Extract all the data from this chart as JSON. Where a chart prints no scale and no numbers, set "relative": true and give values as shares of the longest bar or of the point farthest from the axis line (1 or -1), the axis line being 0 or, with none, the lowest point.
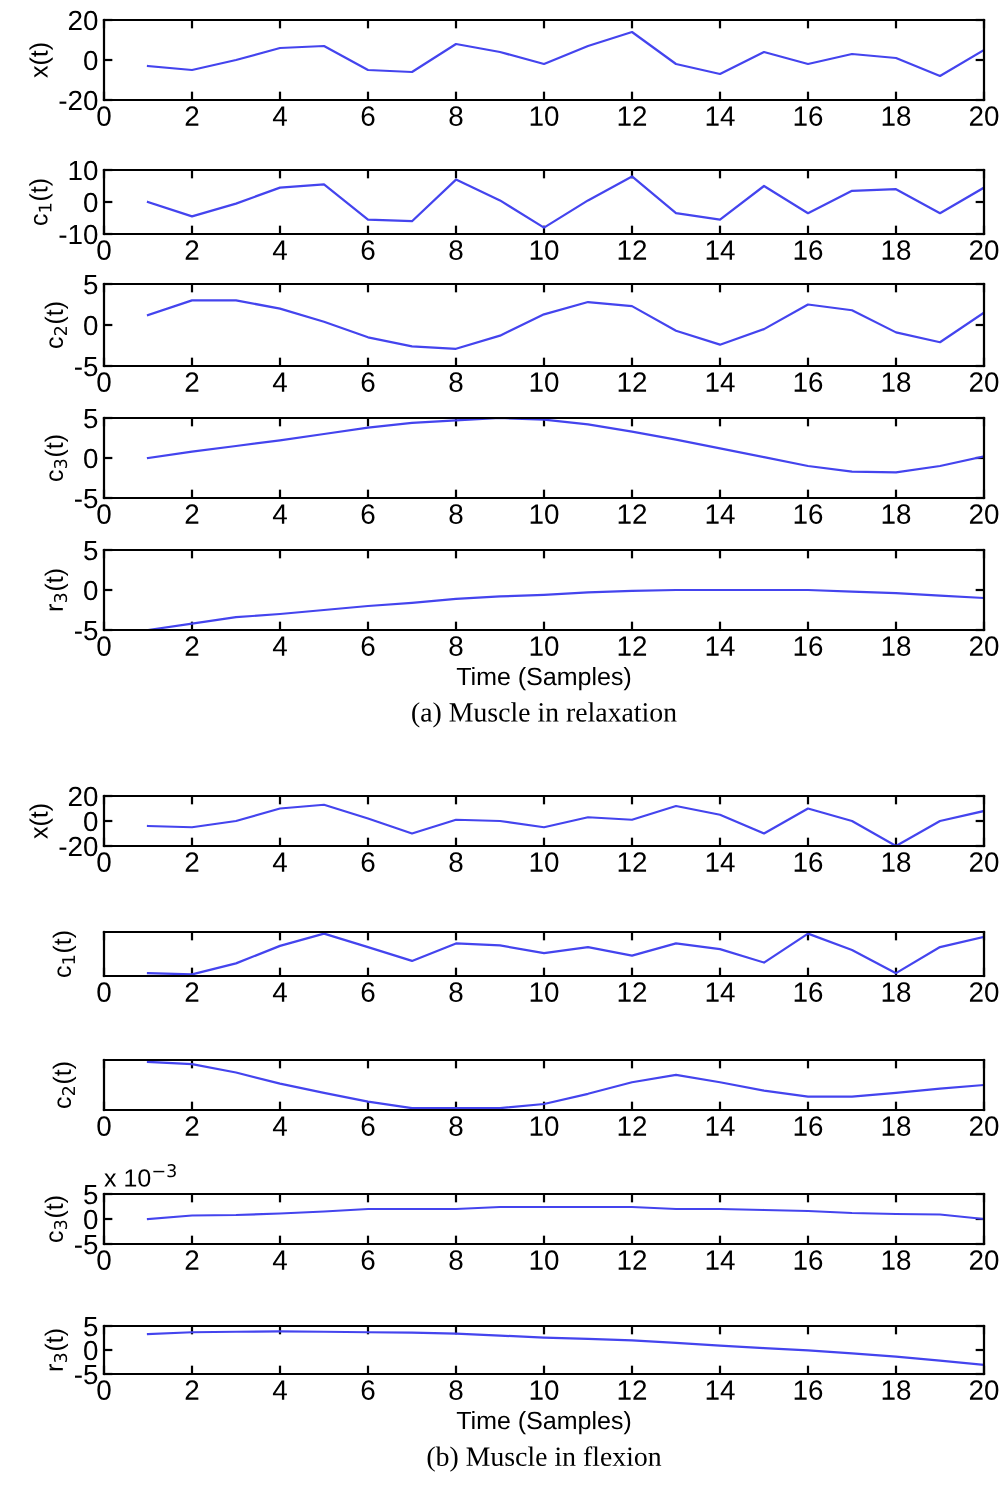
{
  "chart_data": [
    {
      "type": "line",
      "ylabel": "x(t)",
      "x": [
        1,
        2,
        3,
        4,
        5,
        6,
        7,
        8,
        9,
        10,
        11,
        12,
        13,
        14,
        15,
        16,
        17,
        18,
        19,
        20
      ],
      "series": [
        {
          "color": "#4444ee",
          "values": [
            -3,
            -5,
            0,
            6,
            7,
            -5,
            -6,
            8,
            4,
            -2,
            7,
            14,
            -2,
            -7,
            4,
            -2,
            3,
            1,
            -8,
            5
          ]
        }
      ],
      "xlim": [
        0,
        20
      ],
      "xticks": [
        0,
        2,
        4,
        6,
        8,
        10,
        12,
        14,
        16,
        18,
        20
      ],
      "ylim": [
        -20,
        20
      ],
      "yticks": [
        -20,
        0,
        20
      ]
    },
    {
      "type": "line",
      "ylabel": "c$_{1}$(t)",
      "x": [
        1,
        2,
        3,
        4,
        5,
        6,
        7,
        8,
        9,
        10,
        11,
        12,
        13,
        14,
        15,
        16,
        17,
        18,
        19,
        20
      ],
      "series": [
        {
          "color": "#4444ee",
          "values": [
            0,
            -4.5,
            -0.5,
            4.5,
            5.5,
            -5.5,
            -6,
            7,
            0.5,
            -8,
            0.5,
            8,
            -3.5,
            -5.5,
            5,
            -3.5,
            3.5,
            4,
            -3.5,
            4.5
          ]
        }
      ],
      "xlim": [
        0,
        20
      ],
      "xticks": [
        0,
        2,
        4,
        6,
        8,
        10,
        12,
        14,
        16,
        18,
        20
      ],
      "ylim": [
        -10,
        10
      ],
      "yticks": [
        -10,
        0,
        10
      ]
    },
    {
      "type": "line",
      "ylabel": "c$_{2}$(t)",
      "x": [
        1,
        2,
        3,
        4,
        5,
        6,
        7,
        8,
        9,
        10,
        11,
        12,
        13,
        14,
        15,
        16,
        17,
        18,
        19,
        20
      ],
      "series": [
        {
          "color": "#4444ee",
          "values": [
            1.2,
            3,
            3,
            2,
            0.4,
            -1.5,
            -2.6,
            -2.9,
            -1.3,
            1.3,
            2.8,
            2.3,
            -0.7,
            -2.4,
            -0.5,
            2.5,
            1.8,
            -0.9,
            -2.1,
            1.5
          ]
        }
      ],
      "xlim": [
        0,
        20
      ],
      "xticks": [
        0,
        2,
        4,
        6,
        8,
        10,
        12,
        14,
        16,
        18,
        20
      ],
      "ylim": [
        -5,
        5
      ],
      "yticks": [
        -5,
        0,
        5
      ]
    },
    {
      "type": "line",
      "ylabel": "c$_{3}$(t)",
      "x": [
        1,
        2,
        3,
        4,
        5,
        6,
        7,
        8,
        9,
        10,
        11,
        12,
        13,
        14,
        15,
        16,
        17,
        18,
        19,
        20
      ],
      "series": [
        {
          "color": "#4444ee",
          "values": [
            0,
            0.8,
            1.5,
            2.2,
            3,
            3.8,
            4.4,
            4.7,
            5,
            4.8,
            4.2,
            3.3,
            2.3,
            1.2,
            0.1,
            -1,
            -1.7,
            -1.8,
            -1,
            0.2
          ]
        }
      ],
      "xlim": [
        0,
        20
      ],
      "xticks": [
        0,
        2,
        4,
        6,
        8,
        10,
        12,
        14,
        16,
        18,
        20
      ],
      "ylim": [
        -5,
        5
      ],
      "yticks": [
        -5,
        0,
        5
      ]
    },
    {
      "type": "line",
      "ylabel": "r$_{3}$(t)",
      "xlabel": "Time (Samples)",
      "annotations": [
        "(a) Muscle in relaxation"
      ],
      "x": [
        1,
        2,
        3,
        4,
        5,
        6,
        7,
        8,
        9,
        10,
        11,
        12,
        13,
        14,
        15,
        16,
        17,
        18,
        19,
        20
      ],
      "series": [
        {
          "color": "#4444ee",
          "values": [
            -5,
            -4.2,
            -3.4,
            -3,
            -2.5,
            -2,
            -1.6,
            -1.1,
            -0.8,
            -0.6,
            -0.3,
            -0.1,
            0,
            0,
            0,
            0,
            -0.2,
            -0.4,
            -0.7,
            -1
          ]
        }
      ],
      "xlim": [
        0,
        20
      ],
      "xticks": [
        0,
        2,
        4,
        6,
        8,
        10,
        12,
        14,
        16,
        18,
        20
      ],
      "ylim": [
        -5,
        5
      ],
      "yticks": [
        -5,
        0,
        5
      ]
    },
    {
      "type": "line",
      "ylabel": "x(t)",
      "x": [
        1,
        2,
        3,
        4,
        5,
        6,
        7,
        8,
        9,
        10,
        11,
        12,
        13,
        14,
        15,
        16,
        17,
        18,
        19,
        20
      ],
      "series": [
        {
          "color": "#4444ee",
          "values": [
            -4,
            -5,
            0,
            10,
            13,
            2,
            -10,
            1,
            0,
            -5,
            3,
            1,
            12,
            5,
            -10,
            10,
            0,
            -20,
            0,
            8
          ]
        }
      ],
      "xlim": [
        0,
        20
      ],
      "xticks": [
        0,
        2,
        4,
        6,
        8,
        10,
        12,
        14,
        16,
        18,
        20
      ],
      "ylim": [
        -20,
        20
      ],
      "yticks": [
        -20,
        0,
        20
      ]
    },
    {
      "type": "line",
      "relative": true,
      "ylabel": "c$_{1}$(t)",
      "x": [
        1,
        2,
        3,
        4,
        5,
        6,
        7,
        8,
        9,
        10,
        11,
        12,
        13,
        14,
        15,
        16,
        17,
        18,
        19,
        20
      ],
      "series": [
        {
          "color": "#4444ee",
          "values": [
            0.03,
            0,
            0.27,
            0.7,
            1,
            0.67,
            0.33,
            0.76,
            0.71,
            0.52,
            0.67,
            0.46,
            0.76,
            0.62,
            0.29,
            1,
            0.6,
            0.03,
            0.67,
            0.92
          ]
        }
      ],
      "xlim": [
        0,
        20
      ],
      "xticks": [
        0,
        2,
        4,
        6,
        8,
        10,
        12,
        14,
        16,
        18,
        20
      ]
    },
    {
      "type": "line",
      "relative": true,
      "ylabel": "c$_{2}$(t)",
      "x": [
        1,
        2,
        3,
        4,
        5,
        6,
        7,
        8,
        9,
        10,
        11,
        12,
        13,
        14,
        15,
        16,
        17,
        18,
        19,
        20
      ],
      "series": [
        {
          "color": "#4444ee",
          "values": [
            1,
            0.95,
            0.77,
            0.53,
            0.33,
            0.14,
            0,
            0,
            0,
            0.09,
            0.31,
            0.56,
            0.72,
            0.56,
            0.38,
            0.25,
            0.25,
            0.33,
            0.42,
            0.5
          ]
        }
      ],
      "xlim": [
        0,
        20
      ],
      "xticks": [
        0,
        2,
        4,
        6,
        8,
        10,
        12,
        14,
        16,
        18,
        20
      ]
    },
    {
      "type": "line",
      "ylabel": "c$_{3}$(t)",
      "annotations": [
        "x 10$^{−3}$"
      ],
      "x": [
        1,
        2,
        3,
        4,
        5,
        6,
        7,
        8,
        9,
        10,
        11,
        12,
        13,
        14,
        15,
        16,
        17,
        18,
        19,
        20
      ],
      "series": [
        {
          "color": "#4444ee",
          "values": [
            0,
            0.7,
            0.8,
            1.1,
            1.5,
            2,
            2,
            2,
            2.4,
            2.4,
            2.4,
            2.4,
            2,
            2,
            1.8,
            1.6,
            1.2,
            1,
            0.9,
            0
          ]
        }
      ],
      "xlim": [
        0,
        20
      ],
      "xticks": [
        0,
        2,
        4,
        6,
        8,
        10,
        12,
        14,
        16,
        18,
        20
      ],
      "ylim": [
        -5,
        5
      ],
      "yticks": [
        -5,
        0,
        5
      ]
    },
    {
      "type": "line",
      "ylabel": "r$_{3}$(t)",
      "xlabel": "Time (Samples)",
      "annotations": [
        "(b) Muscle in flexion"
      ],
      "x": [
        1,
        2,
        3,
        4,
        5,
        6,
        7,
        8,
        9,
        10,
        11,
        12,
        13,
        14,
        15,
        16,
        17,
        18,
        19,
        20
      ],
      "series": [
        {
          "color": "#4444ee",
          "values": [
            3.3,
            3.7,
            3.8,
            3.9,
            3.8,
            3.7,
            3.6,
            3.4,
            3,
            2.6,
            2.3,
            2,
            1.5,
            0.9,
            0.4,
            -0.1,
            -0.7,
            -1.4,
            -2.2,
            -3.1
          ]
        }
      ],
      "xlim": [
        0,
        20
      ],
      "xticks": [
        0,
        2,
        4,
        6,
        8,
        10,
        12,
        14,
        16,
        18,
        20
      ],
      "ylim": [
        -5,
        5
      ],
      "yticks": [
        -5,
        0,
        5
      ]
    }
  ]
}
